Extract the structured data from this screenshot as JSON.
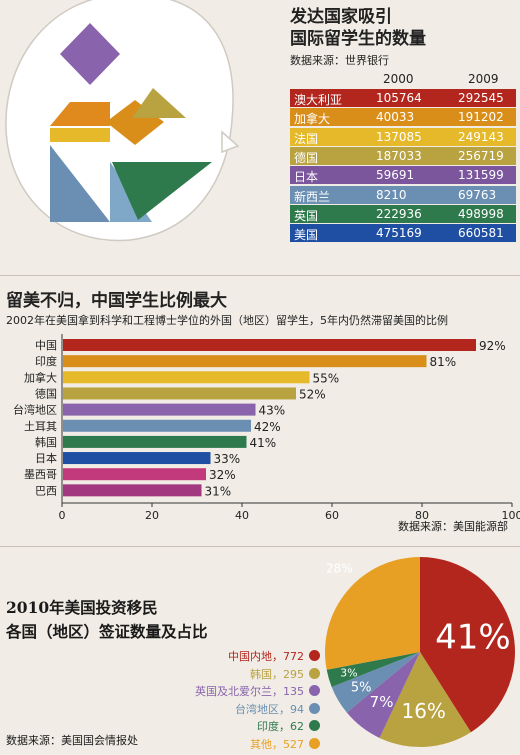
{
  "section1": {
    "title_line1": "发达国家吸引",
    "title_line2": "国际留学生的数量",
    "source": "数据来源：世界银行",
    "year_a": "2000",
    "year_b": "2009",
    "rows": [
      {
        "country": "澳大利亚",
        "v2000": "105764",
        "v2009": "292545",
        "color": "#b3261e"
      },
      {
        "country": "加拿大",
        "v2000": "40033",
        "v2009": "191202",
        "color": "#d98e1a"
      },
      {
        "country": "法国",
        "v2000": "137085",
        "v2009": "249143",
        "color": "#e6b92a"
      },
      {
        "country": "德国",
        "v2000": "187033",
        "v2009": "256719",
        "color": "#b9a240"
      },
      {
        "country": "日本",
        "v2000": "59691",
        "v2009": "131599",
        "color": "#7b569c"
      },
      {
        "country": "新西兰",
        "v2000": "8210",
        "v2009": "69763",
        "color": "#6a8fb2"
      },
      {
        "country": "英国",
        "v2000": "222936",
        "v2009": "498998",
        "color": "#2f7a4d"
      },
      {
        "country": "美国",
        "v2000": "475169",
        "v2009": "660581",
        "color": "#1f4fa3"
      }
    ]
  },
  "chart_data": [
    {
      "type": "bar",
      "title": "留美不归，中国学生比例最大",
      "subtitle": "2002年在美国拿到科学和工程博士学位的外国（地区）留学生，5年内仍然滞留美国的比例",
      "categories": [
        "中国",
        "印度",
        "加拿大",
        "德国",
        "台湾地区",
        "土耳其",
        "韩国",
        "日本",
        "墨西哥",
        "巴西"
      ],
      "values": [
        92,
        81,
        55,
        52,
        43,
        42,
        41,
        33,
        32,
        31
      ],
      "value_labels": [
        "92%",
        "81%",
        "55%",
        "52%",
        "43%",
        "42%",
        "41%",
        "33%",
        "32%",
        "31%"
      ],
      "colors": [
        "#b3261e",
        "#d98e1a",
        "#e6b92a",
        "#b9a240",
        "#8a63ad",
        "#6a8fb2",
        "#2f7a4d",
        "#1f4fa3",
        "#c23a7c",
        "#a2387f"
      ],
      "xlim": [
        0,
        100
      ],
      "xticks": [
        "0",
        "20",
        "40",
        "60",
        "80",
        "100"
      ],
      "orientation": "horizontal",
      "source": "数据来源：美国能源部"
    },
    {
      "type": "pie",
      "title_line1": "2010年美国投资移民",
      "title_line2": "各国（地区）签证数量及占比",
      "source": "数据来源：美国国会情报处",
      "slices": [
        {
          "name": "中国内地",
          "count": "772",
          "percent": 41,
          "label": "41%",
          "color": "#b3261e"
        },
        {
          "name": "韩国",
          "count": "295",
          "percent": 16,
          "label": "16%",
          "color": "#b9a240"
        },
        {
          "name": "英国及北爱尔兰",
          "count": "135",
          "percent": 7,
          "label": "7%",
          "color": "#8a63ad"
        },
        {
          "name": "台湾地区",
          "count": "94",
          "percent": 5,
          "label": "5%",
          "color": "#6a8fb2"
        },
        {
          "name": "印度",
          "count": "62",
          "percent": 3,
          "label": "3%",
          "color": "#2f7a4d"
        },
        {
          "name": "其他",
          "count": "527",
          "percent": 28,
          "label": "28%",
          "color": "#e8a024"
        }
      ]
    }
  ]
}
